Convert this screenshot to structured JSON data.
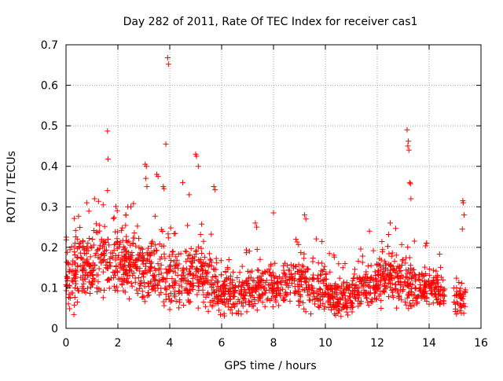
{
  "chart_data": {
    "type": "scatter",
    "title": "Day 282 of 2011, Rate Of TEC Index for receiver cas1",
    "xlabel": "GPS time / hours",
    "ylabel": "ROTI / TECUs",
    "xlim": [
      0,
      16
    ],
    "ylim": [
      0,
      0.7
    ],
    "x_ticks": [
      0,
      2,
      4,
      6,
      8,
      10,
      12,
      14,
      16
    ],
    "y_ticks": [
      0,
      0.1,
      0.2,
      0.3,
      0.4,
      0.5,
      0.6,
      0.7
    ],
    "x_tick_labels": [
      "0",
      "2",
      "4",
      "6",
      "8",
      "10",
      "12",
      "14",
      "16"
    ],
    "y_tick_labels": [
      "0",
      "0.1",
      "0.2",
      "0.3",
      "0.4",
      "0.5",
      "0.6",
      "0.7"
    ],
    "grid": true,
    "marker": "+",
    "color": "#ff0000",
    "data_gap_hours": [
      14.6,
      14.95
    ],
    "envelope_note": "dense cloud of ~2000 ROTI samples; per-hour band below",
    "envelope": [
      {
        "t": 0.0,
        "low": 0.03,
        "high": 0.2
      },
      {
        "t": 0.5,
        "low": 0.04,
        "high": 0.24
      },
      {
        "t": 1.0,
        "low": 0.05,
        "high": 0.28
      },
      {
        "t": 1.5,
        "low": 0.06,
        "high": 0.27
      },
      {
        "t": 2.0,
        "low": 0.06,
        "high": 0.27
      },
      {
        "t": 2.5,
        "low": 0.06,
        "high": 0.27
      },
      {
        "t": 3.0,
        "low": 0.05,
        "high": 0.26
      },
      {
        "t": 3.5,
        "low": 0.04,
        "high": 0.23
      },
      {
        "t": 4.0,
        "low": 0.04,
        "high": 0.2
      },
      {
        "t": 4.5,
        "low": 0.04,
        "high": 0.21
      },
      {
        "t": 5.0,
        "low": 0.05,
        "high": 0.22
      },
      {
        "t": 5.5,
        "low": 0.05,
        "high": 0.21
      },
      {
        "t": 6.0,
        "low": 0.03,
        "high": 0.15
      },
      {
        "t": 6.5,
        "low": 0.03,
        "high": 0.14
      },
      {
        "t": 7.0,
        "low": 0.04,
        "high": 0.16
      },
      {
        "t": 7.5,
        "low": 0.04,
        "high": 0.16
      },
      {
        "t": 8.0,
        "low": 0.04,
        "high": 0.17
      },
      {
        "t": 8.5,
        "low": 0.05,
        "high": 0.18
      },
      {
        "t": 9.0,
        "low": 0.05,
        "high": 0.19
      },
      {
        "t": 9.5,
        "low": 0.04,
        "high": 0.18
      },
      {
        "t": 10.0,
        "low": 0.04,
        "high": 0.16
      },
      {
        "t": 10.5,
        "low": 0.02,
        "high": 0.13
      },
      {
        "t": 11.0,
        "low": 0.03,
        "high": 0.14
      },
      {
        "t": 11.5,
        "low": 0.04,
        "high": 0.16
      },
      {
        "t": 12.0,
        "low": 0.05,
        "high": 0.18
      },
      {
        "t": 12.5,
        "low": 0.05,
        "high": 0.2
      },
      {
        "t": 13.0,
        "low": 0.05,
        "high": 0.2
      },
      {
        "t": 13.5,
        "low": 0.04,
        "high": 0.17
      },
      {
        "t": 14.0,
        "low": 0.04,
        "high": 0.16
      },
      {
        "t": 14.5,
        "low": 0.03,
        "high": 0.15
      },
      {
        "t": 15.0,
        "low": 0.02,
        "high": 0.1
      },
      {
        "t": 15.4,
        "low": 0.02,
        "high": 0.12
      }
    ],
    "peaks": [
      {
        "x": 1.6,
        "y": 0.487
      },
      {
        "x": 1.62,
        "y": 0.418
      },
      {
        "x": 1.6,
        "y": 0.34
      },
      {
        "x": 3.92,
        "y": 0.668
      },
      {
        "x": 3.95,
        "y": 0.652
      },
      {
        "x": 3.85,
        "y": 0.455
      },
      {
        "x": 3.05,
        "y": 0.405
      },
      {
        "x": 3.1,
        "y": 0.4
      },
      {
        "x": 3.08,
        "y": 0.37
      },
      {
        "x": 3.12,
        "y": 0.35
      },
      {
        "x": 3.5,
        "y": 0.38
      },
      {
        "x": 3.55,
        "y": 0.375
      },
      {
        "x": 3.75,
        "y": 0.35
      },
      {
        "x": 3.78,
        "y": 0.345
      },
      {
        "x": 4.5,
        "y": 0.36
      },
      {
        "x": 5.0,
        "y": 0.43
      },
      {
        "x": 5.03,
        "y": 0.425
      },
      {
        "x": 5.1,
        "y": 0.4
      },
      {
        "x": 5.7,
        "y": 0.35
      },
      {
        "x": 5.75,
        "y": 0.342
      },
      {
        "x": 4.75,
        "y": 0.33
      },
      {
        "x": 13.15,
        "y": 0.49
      },
      {
        "x": 13.2,
        "y": 0.462
      },
      {
        "x": 13.18,
        "y": 0.45
      },
      {
        "x": 13.22,
        "y": 0.44
      },
      {
        "x": 13.25,
        "y": 0.36
      },
      {
        "x": 13.28,
        "y": 0.357
      },
      {
        "x": 13.3,
        "y": 0.32
      },
      {
        "x": 15.3,
        "y": 0.315
      },
      {
        "x": 15.32,
        "y": 0.31
      },
      {
        "x": 15.35,
        "y": 0.28
      },
      {
        "x": 15.28,
        "y": 0.245
      },
      {
        "x": 7.3,
        "y": 0.26
      },
      {
        "x": 7.35,
        "y": 0.25
      },
      {
        "x": 8.0,
        "y": 0.285
      },
      {
        "x": 9.2,
        "y": 0.28
      },
      {
        "x": 9.25,
        "y": 0.27
      },
      {
        "x": 12.5,
        "y": 0.26
      },
      {
        "x": 11.7,
        "y": 0.24
      },
      {
        "x": 0.8,
        "y": 0.31
      },
      {
        "x": 1.1,
        "y": 0.32
      },
      {
        "x": 2.5,
        "y": 0.3
      }
    ]
  }
}
